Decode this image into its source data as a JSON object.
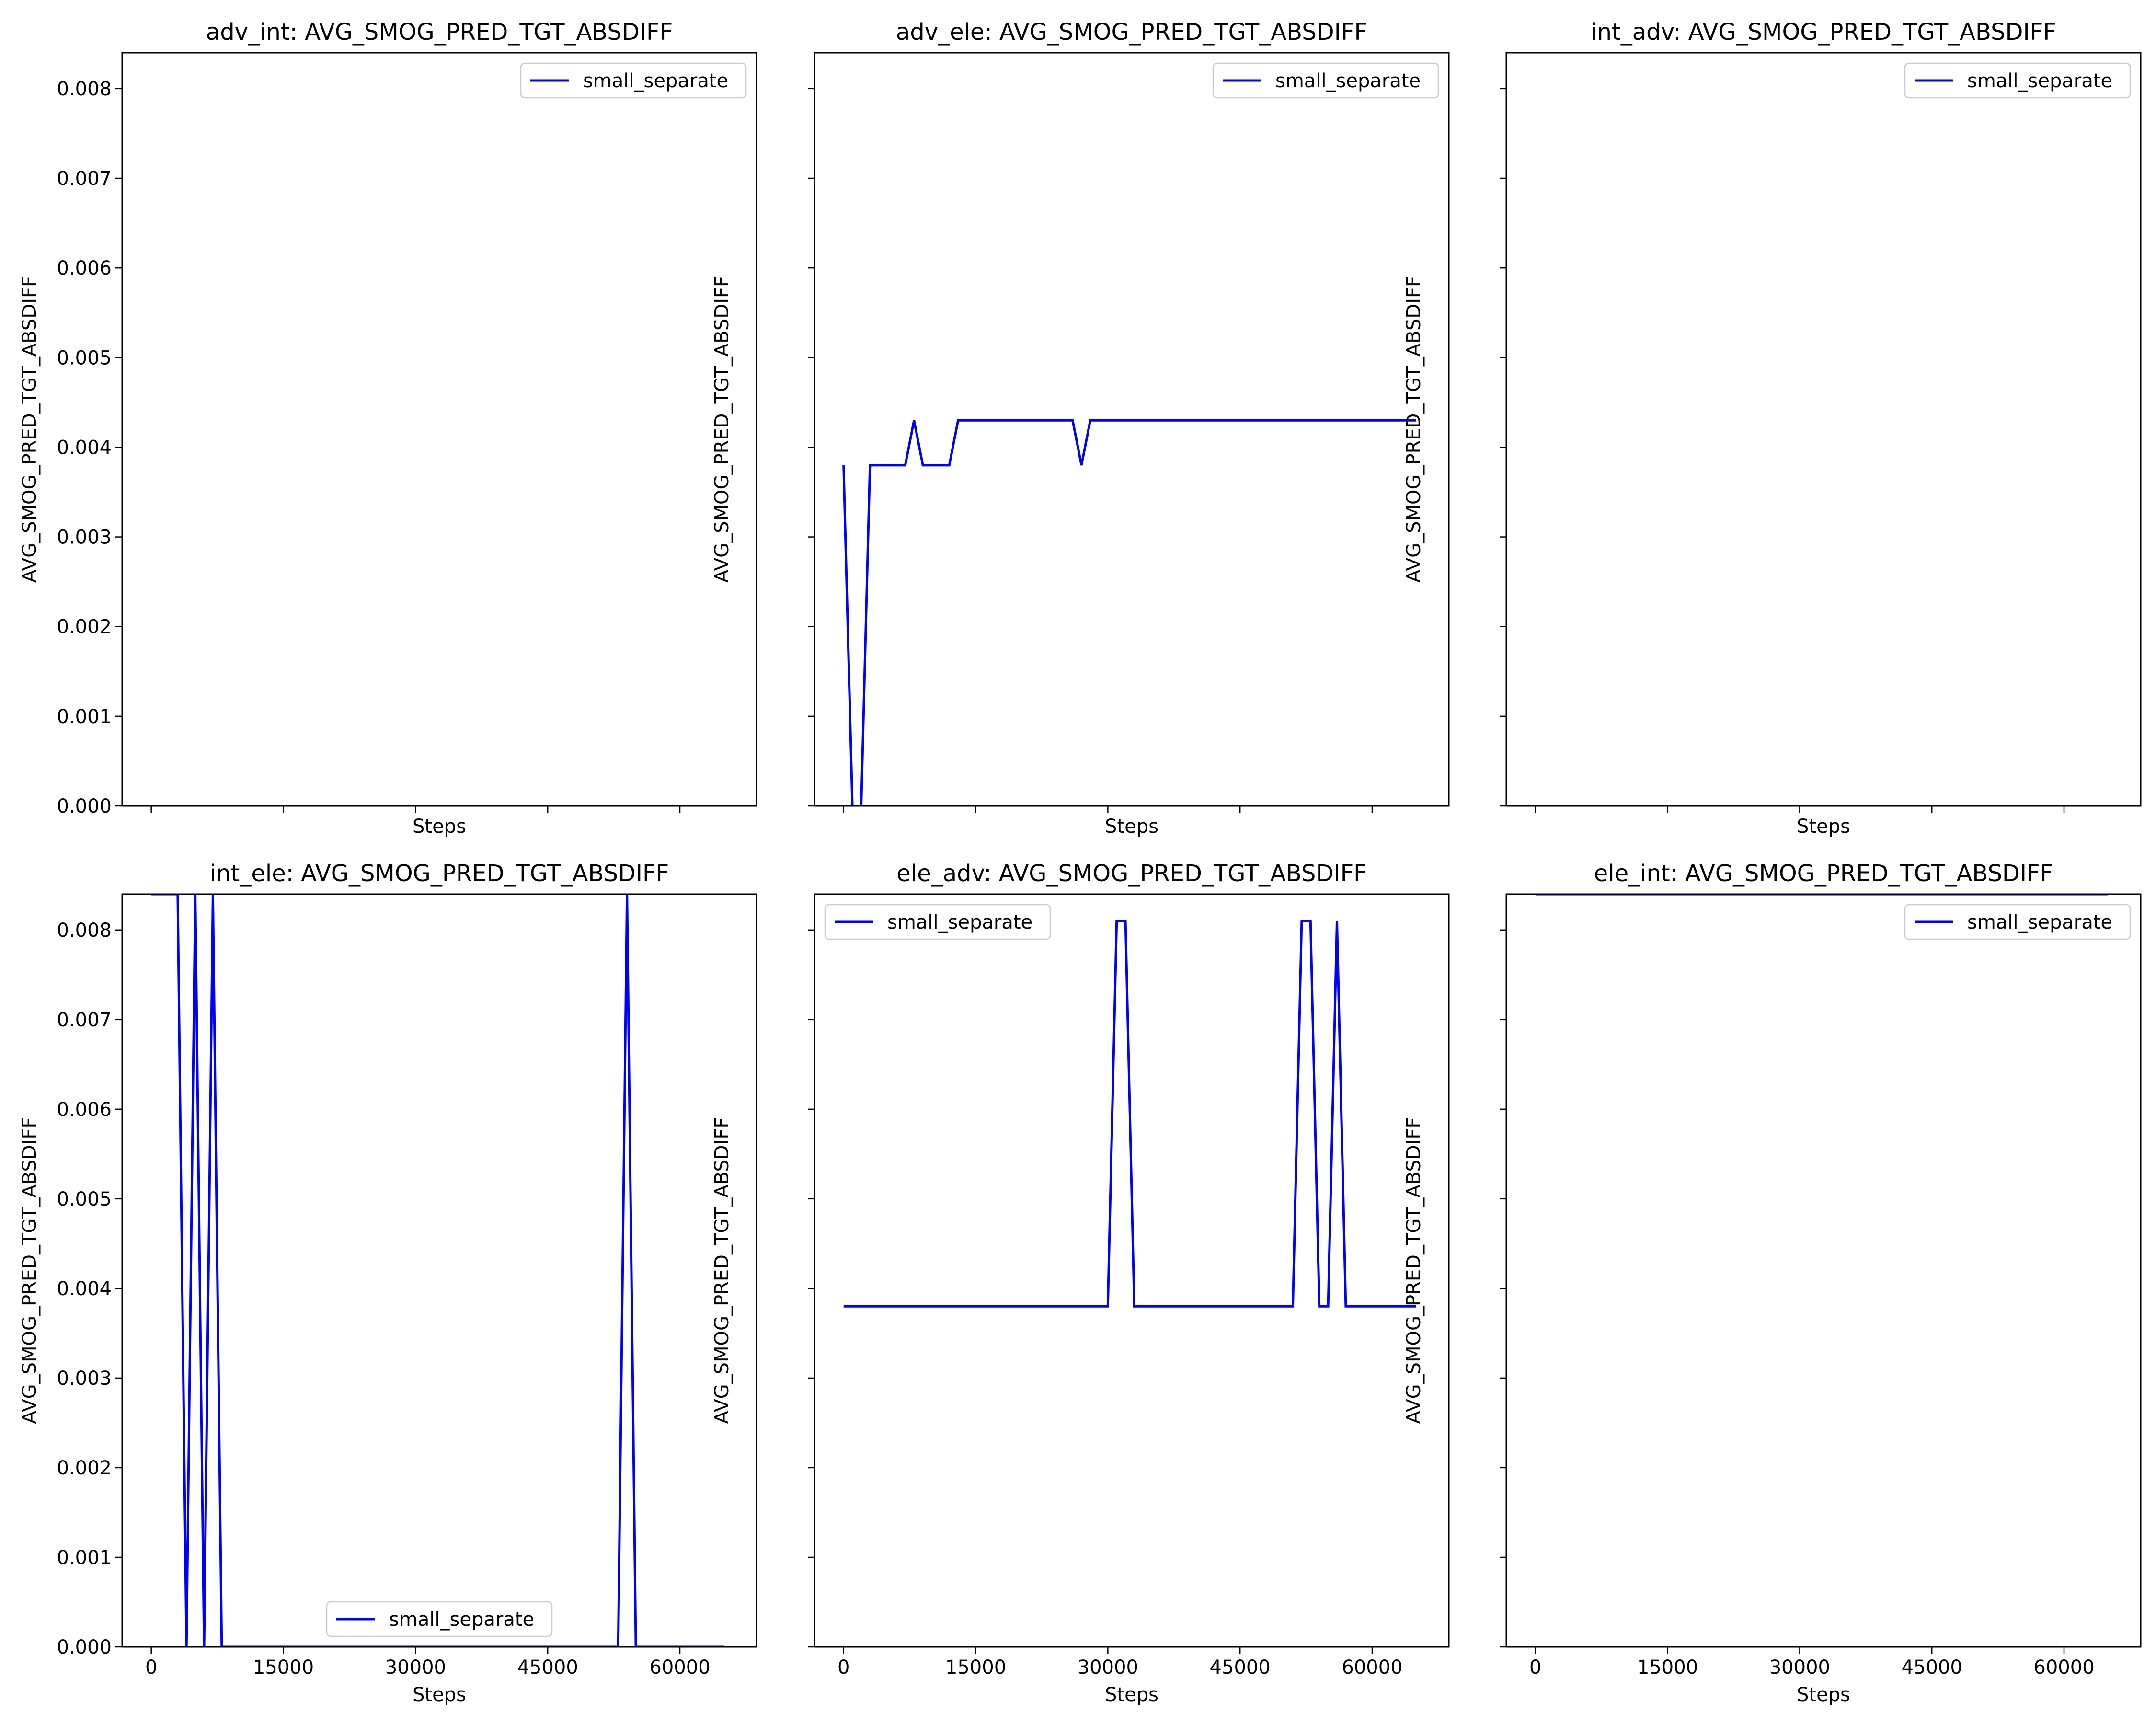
{
  "chart_data": [
    {
      "type": "line",
      "title": "adv_int: AVG_SMOG_PRED_TGT_ABSDIFF",
      "xlabel": "Steps",
      "ylabel": "AVG_SMOG_PRED_TGT_ABSDIFF",
      "xlim": [
        -3300,
        68700
      ],
      "ylim": [
        0,
        0.0084
      ],
      "xticks": [
        0,
        15000,
        30000,
        45000,
        60000
      ],
      "xtick_labels": [
        "",
        "",
        "",
        "",
        ""
      ],
      "yticks": [
        0,
        0.001,
        0.002,
        0.003,
        0.004,
        0.005,
        0.006,
        0.007,
        0.008
      ],
      "ytick_labels": [
        "0.000",
        "0.001",
        "0.002",
        "0.003",
        "0.004",
        "0.005",
        "0.006",
        "0.007",
        "0.008"
      ],
      "legend": "upper right",
      "grid": false,
      "series": [
        {
          "name": "small_separate",
          "color": "#0000ff",
          "x": [
            0,
            65000
          ],
          "y": [
            0,
            0
          ]
        }
      ]
    },
    {
      "type": "line",
      "title": "adv_ele: AVG_SMOG_PRED_TGT_ABSDIFF",
      "xlabel": "Steps",
      "ylabel": "AVG_SMOG_PRED_TGT_ABSDIFF",
      "xlim": [
        -3300,
        68700
      ],
      "ylim": [
        0,
        0.0084
      ],
      "xticks": [
        0,
        15000,
        30000,
        45000,
        60000
      ],
      "xtick_labels": [
        "",
        "",
        "",
        "",
        ""
      ],
      "yticks": [
        0,
        0.001,
        0.002,
        0.003,
        0.004,
        0.005,
        0.006,
        0.007,
        0.008
      ],
      "ytick_labels": [
        "",
        "",
        "",
        "",
        "",
        "",
        "",
        "",
        ""
      ],
      "legend": "upper right",
      "grid": false,
      "series": [
        {
          "name": "small_separate",
          "color": "#0000ff",
          "x": [
            0,
            1000,
            2000,
            3000,
            4000,
            5000,
            6000,
            7000,
            8000,
            9000,
            10000,
            11000,
            12000,
            13000,
            14000,
            15000,
            16000,
            17000,
            18000,
            19000,
            20000,
            21000,
            22000,
            23000,
            24000,
            25000,
            26000,
            27000,
            28000,
            29000,
            30000,
            31000,
            32000,
            33000,
            34000,
            35000,
            36000,
            37000,
            38000,
            39000,
            40000,
            41000,
            42000,
            43000,
            44000,
            45000,
            46000,
            47000,
            48000,
            49000,
            50000,
            51000,
            52000,
            53000,
            54000,
            55000,
            56000,
            57000,
            58000,
            59000,
            60000,
            61000,
            62000,
            63000,
            64000,
            65000
          ],
          "y": [
            0.0038,
            0.0,
            0.0,
            0.0038,
            0.0038,
            0.0038,
            0.0038,
            0.0038,
            0.0043,
            0.0038,
            0.0038,
            0.0038,
            0.0038,
            0.0043,
            0.0043,
            0.0043,
            0.0043,
            0.0043,
            0.0043,
            0.0043,
            0.0043,
            0.0043,
            0.0043,
            0.0043,
            0.0043,
            0.0043,
            0.0043,
            0.0038,
            0.0043,
            0.0043,
            0.0043,
            0.0043,
            0.0043,
            0.0043,
            0.0043,
            0.0043,
            0.0043,
            0.0043,
            0.0043,
            0.0043,
            0.0043,
            0.0043,
            0.0043,
            0.0043,
            0.0043,
            0.0043,
            0.0043,
            0.0043,
            0.0043,
            0.0043,
            0.0043,
            0.0043,
            0.0043,
            0.0043,
            0.0043,
            0.0043,
            0.0043,
            0.0043,
            0.0043,
            0.0043,
            0.0043,
            0.0043,
            0.0043,
            0.0043,
            0.0043,
            0.0043
          ]
        }
      ]
    },
    {
      "type": "line",
      "title": "int_adv: AVG_SMOG_PRED_TGT_ABSDIFF",
      "xlabel": "Steps",
      "ylabel": "AVG_SMOG_PRED_TGT_ABSDIFF",
      "xlim": [
        -3300,
        68700
      ],
      "ylim": [
        0,
        0.0084
      ],
      "xticks": [
        0,
        15000,
        30000,
        45000,
        60000
      ],
      "xtick_labels": [
        "",
        "",
        "",
        "",
        ""
      ],
      "yticks": [
        0,
        0.001,
        0.002,
        0.003,
        0.004,
        0.005,
        0.006,
        0.007,
        0.008
      ],
      "ytick_labels": [
        "",
        "",
        "",
        "",
        "",
        "",
        "",
        "",
        ""
      ],
      "legend": "upper right",
      "grid": false,
      "series": [
        {
          "name": "small_separate",
          "color": "#0000ff",
          "x": [
            0,
            65000
          ],
          "y": [
            0,
            0
          ]
        }
      ]
    },
    {
      "type": "line",
      "title": "int_ele: AVG_SMOG_PRED_TGT_ABSDIFF",
      "xlabel": "Steps",
      "ylabel": "AVG_SMOG_PRED_TGT_ABSDIFF",
      "xlim": [
        -3300,
        68700
      ],
      "ylim": [
        0,
        0.0084
      ],
      "xticks": [
        0,
        15000,
        30000,
        45000,
        60000
      ],
      "xtick_labels": [
        "0",
        "15000",
        "30000",
        "45000",
        "60000"
      ],
      "yticks": [
        0,
        0.001,
        0.002,
        0.003,
        0.004,
        0.005,
        0.006,
        0.007,
        0.008
      ],
      "ytick_labels": [
        "0.000",
        "0.001",
        "0.002",
        "0.003",
        "0.004",
        "0.005",
        "0.006",
        "0.007",
        "0.008"
      ],
      "legend": "lower center",
      "grid": false,
      "series": [
        {
          "name": "small_separate",
          "color": "#0000ff",
          "x": [
            0,
            1000,
            2000,
            3000,
            4000,
            5000,
            6000,
            7000,
            8000,
            9000,
            10000,
            11000,
            12000,
            13000,
            14000,
            15000,
            16000,
            17000,
            18000,
            19000,
            20000,
            21000,
            22000,
            23000,
            24000,
            25000,
            26000,
            27000,
            28000,
            29000,
            30000,
            31000,
            32000,
            33000,
            34000,
            35000,
            36000,
            37000,
            38000,
            39000,
            40000,
            41000,
            42000,
            43000,
            44000,
            45000,
            46000,
            47000,
            48000,
            49000,
            50000,
            51000,
            52000,
            53000,
            54000,
            55000,
            56000,
            57000,
            58000,
            59000,
            60000,
            61000,
            62000,
            63000,
            64000,
            65000
          ],
          "y": [
            0.0084,
            0.0084,
            0.0084,
            0.0084,
            0.0,
            0.0084,
            0.0,
            0.0084,
            0.0,
            0.0,
            0.0,
            0.0,
            0.0,
            0.0,
            0.0,
            0.0,
            0.0,
            0.0,
            0.0,
            0.0,
            0.0,
            0.0,
            0.0,
            0.0,
            0.0,
            0.0,
            0.0,
            0.0,
            0.0,
            0.0,
            0.0,
            0.0,
            0.0,
            0.0,
            0.0,
            0.0,
            0.0,
            0.0,
            0.0,
            0.0,
            0.0,
            0.0,
            0.0,
            0.0,
            0.0,
            0.0,
            0.0,
            0.0,
            0.0,
            0.0,
            0.0,
            0.0,
            0.0,
            0.0,
            0.0084,
            0.0,
            0.0,
            0.0,
            0.0,
            0.0,
            0.0,
            0.0,
            0.0,
            0.0,
            0.0,
            0.0
          ]
        }
      ]
    },
    {
      "type": "line",
      "title": "ele_adv: AVG_SMOG_PRED_TGT_ABSDIFF",
      "xlabel": "Steps",
      "ylabel": "AVG_SMOG_PRED_TGT_ABSDIFF",
      "xlim": [
        -3300,
        68700
      ],
      "ylim": [
        0,
        0.0084
      ],
      "xticks": [
        0,
        15000,
        30000,
        45000,
        60000
      ],
      "xtick_labels": [
        "0",
        "15000",
        "30000",
        "45000",
        "60000"
      ],
      "yticks": [
        0,
        0.001,
        0.002,
        0.003,
        0.004,
        0.005,
        0.006,
        0.007,
        0.008
      ],
      "ytick_labels": [
        "",
        "",
        "",
        "",
        "",
        "",
        "",
        "",
        ""
      ],
      "legend": "upper left",
      "grid": false,
      "series": [
        {
          "name": "small_separate",
          "color": "#0000ff",
          "x": [
            0,
            1000,
            2000,
            3000,
            4000,
            5000,
            6000,
            7000,
            8000,
            9000,
            10000,
            11000,
            12000,
            13000,
            14000,
            15000,
            16000,
            17000,
            18000,
            19000,
            20000,
            21000,
            22000,
            23000,
            24000,
            25000,
            26000,
            27000,
            28000,
            29000,
            30000,
            31000,
            32000,
            33000,
            34000,
            35000,
            36000,
            37000,
            38000,
            39000,
            40000,
            41000,
            42000,
            43000,
            44000,
            45000,
            46000,
            47000,
            48000,
            49000,
            50000,
            51000,
            52000,
            53000,
            54000,
            55000,
            56000,
            57000,
            58000,
            59000,
            60000,
            61000,
            62000,
            63000,
            64000,
            65000
          ],
          "y": [
            0.0038,
            0.0038,
            0.0038,
            0.0038,
            0.0038,
            0.0038,
            0.0038,
            0.0038,
            0.0038,
            0.0038,
            0.0038,
            0.0038,
            0.0038,
            0.0038,
            0.0038,
            0.0038,
            0.0038,
            0.0038,
            0.0038,
            0.0038,
            0.0038,
            0.0038,
            0.0038,
            0.0038,
            0.0038,
            0.0038,
            0.0038,
            0.0038,
            0.0038,
            0.0038,
            0.0038,
            0.0081,
            0.0081,
            0.0038,
            0.0038,
            0.0038,
            0.0038,
            0.0038,
            0.0038,
            0.0038,
            0.0038,
            0.0038,
            0.0038,
            0.0038,
            0.0038,
            0.0038,
            0.0038,
            0.0038,
            0.0038,
            0.0038,
            0.0038,
            0.0038,
            0.0081,
            0.0081,
            0.0038,
            0.0038,
            0.0081,
            0.0038,
            0.0038,
            0.0038,
            0.0038,
            0.0038,
            0.0038,
            0.0038,
            0.0038,
            0.0038
          ]
        }
      ]
    },
    {
      "type": "line",
      "title": "ele_int: AVG_SMOG_PRED_TGT_ABSDIFF",
      "xlabel": "Steps",
      "ylabel": "AVG_SMOG_PRED_TGT_ABSDIFF",
      "xlim": [
        -3300,
        68700
      ],
      "ylim": [
        0,
        0.0084
      ],
      "xticks": [
        0,
        15000,
        30000,
        45000,
        60000
      ],
      "xtick_labels": [
        "0",
        "15000",
        "30000",
        "45000",
        "60000"
      ],
      "yticks": [
        0,
        0.001,
        0.002,
        0.003,
        0.004,
        0.005,
        0.006,
        0.007,
        0.008
      ],
      "ytick_labels": [
        "",
        "",
        "",
        "",
        "",
        "",
        "",
        "",
        ""
      ],
      "legend": "upper right",
      "grid": false,
      "series": [
        {
          "name": "small_separate",
          "color": "#0000ff",
          "x": [
            0,
            65000
          ],
          "y": [
            0.0084,
            0.0084
          ]
        }
      ]
    }
  ]
}
